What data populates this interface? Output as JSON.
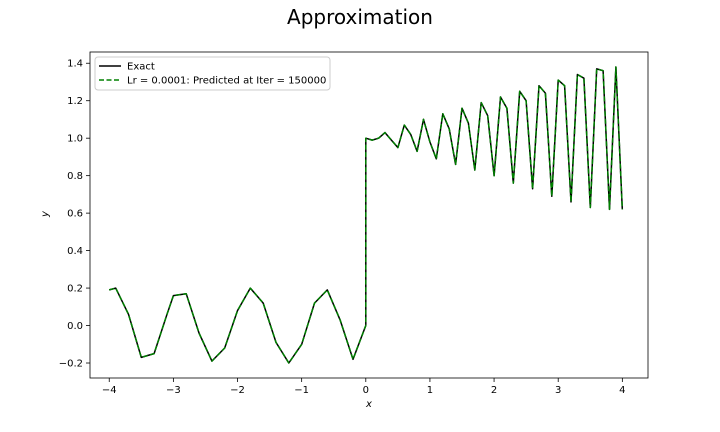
{
  "chart_data": {
    "type": "line",
    "title": "Approximation",
    "xlabel": "x",
    "ylabel": "y",
    "xlim": [
      -4.3,
      4.4
    ],
    "ylim": [
      -0.28,
      1.46
    ],
    "xticks": [
      -4,
      -3,
      -2,
      -1,
      0,
      1,
      2,
      3,
      4
    ],
    "yticks": [
      -0.2,
      0.0,
      0.2,
      0.4,
      0.6,
      0.8,
      1.0,
      1.2,
      1.4
    ],
    "xtick_labels": [
      "−4",
      "−3",
      "−2",
      "−1",
      "0",
      "1",
      "2",
      "3",
      "4"
    ],
    "ytick_labels": [
      "−0.2",
      "0.0",
      "0.2",
      "0.4",
      "0.6",
      "0.8",
      "1.0",
      "1.2",
      "1.4"
    ],
    "grid": false,
    "legend_position": "upper-left",
    "series": [
      {
        "name": "Exact",
        "color": "#000000",
        "style": "solid",
        "x": [
          -4.0,
          -3.9,
          -3.7,
          -3.5,
          -3.3,
          -3.1,
          -3.0,
          -2.8,
          -2.6,
          -2.4,
          -2.2,
          -2.0,
          -1.8,
          -1.6,
          -1.4,
          -1.2,
          -1.0,
          -0.8,
          -0.6,
          -0.4,
          -0.2,
          0.0,
          0.0,
          0.1,
          0.2,
          0.3,
          0.4,
          0.5,
          0.6,
          0.7,
          0.8,
          0.9,
          1.0,
          1.1,
          1.2,
          1.3,
          1.4,
          1.5,
          1.6,
          1.7,
          1.8,
          1.9,
          2.0,
          2.1,
          2.2,
          2.3,
          2.4,
          2.5,
          2.6,
          2.7,
          2.8,
          2.9,
          3.0,
          3.1,
          3.2,
          3.3,
          3.4,
          3.5,
          3.6,
          3.7,
          3.8,
          3.9,
          4.0
        ],
        "y": [
          0.19,
          0.2,
          0.06,
          -0.17,
          -0.15,
          0.06,
          0.16,
          0.17,
          -0.04,
          -0.19,
          -0.12,
          0.08,
          0.2,
          0.12,
          -0.09,
          -0.2,
          -0.1,
          0.12,
          0.19,
          0.03,
          -0.18,
          0.0,
          1.0,
          0.99,
          1.0,
          1.03,
          0.99,
          0.95,
          1.07,
          1.02,
          0.93,
          1.1,
          0.98,
          0.89,
          1.13,
          1.05,
          0.86,
          1.16,
          1.08,
          0.83,
          1.19,
          1.12,
          0.8,
          1.22,
          1.16,
          0.76,
          1.25,
          1.2,
          0.73,
          1.28,
          1.24,
          0.69,
          1.31,
          1.28,
          0.66,
          1.34,
          1.32,
          0.63,
          1.37,
          1.36,
          0.62,
          1.38,
          0.62
        ]
      },
      {
        "name": "Lr = 0.0001: Predicted at Iter = 150000",
        "color": "#008000",
        "style": "dashed",
        "x": [
          -4.0,
          -3.9,
          -3.7,
          -3.5,
          -3.3,
          -3.1,
          -3.0,
          -2.8,
          -2.6,
          -2.4,
          -2.2,
          -2.0,
          -1.8,
          -1.6,
          -1.4,
          -1.2,
          -1.0,
          -0.8,
          -0.6,
          -0.4,
          -0.2,
          0.0,
          0.0,
          0.1,
          0.2,
          0.3,
          0.4,
          0.5,
          0.6,
          0.7,
          0.8,
          0.9,
          1.0,
          1.1,
          1.2,
          1.3,
          1.4,
          1.5,
          1.6,
          1.7,
          1.8,
          1.9,
          2.0,
          2.1,
          2.2,
          2.3,
          2.4,
          2.5,
          2.6,
          2.7,
          2.8,
          2.9,
          3.0,
          3.1,
          3.2,
          3.3,
          3.4,
          3.5,
          3.6,
          3.7,
          3.8,
          3.9,
          4.0
        ],
        "y": [
          0.19,
          0.2,
          0.06,
          -0.17,
          -0.15,
          0.06,
          0.16,
          0.17,
          -0.04,
          -0.19,
          -0.12,
          0.08,
          0.2,
          0.12,
          -0.09,
          -0.2,
          -0.1,
          0.12,
          0.19,
          0.03,
          -0.18,
          0.0,
          1.0,
          0.99,
          1.0,
          1.03,
          0.99,
          0.95,
          1.07,
          1.02,
          0.93,
          1.1,
          0.98,
          0.89,
          1.13,
          1.05,
          0.86,
          1.16,
          1.08,
          0.83,
          1.19,
          1.12,
          0.8,
          1.22,
          1.16,
          0.76,
          1.25,
          1.2,
          0.73,
          1.28,
          1.24,
          0.69,
          1.31,
          1.28,
          0.66,
          1.34,
          1.32,
          0.63,
          1.37,
          1.36,
          0.62,
          1.38,
          0.62
        ]
      }
    ]
  }
}
